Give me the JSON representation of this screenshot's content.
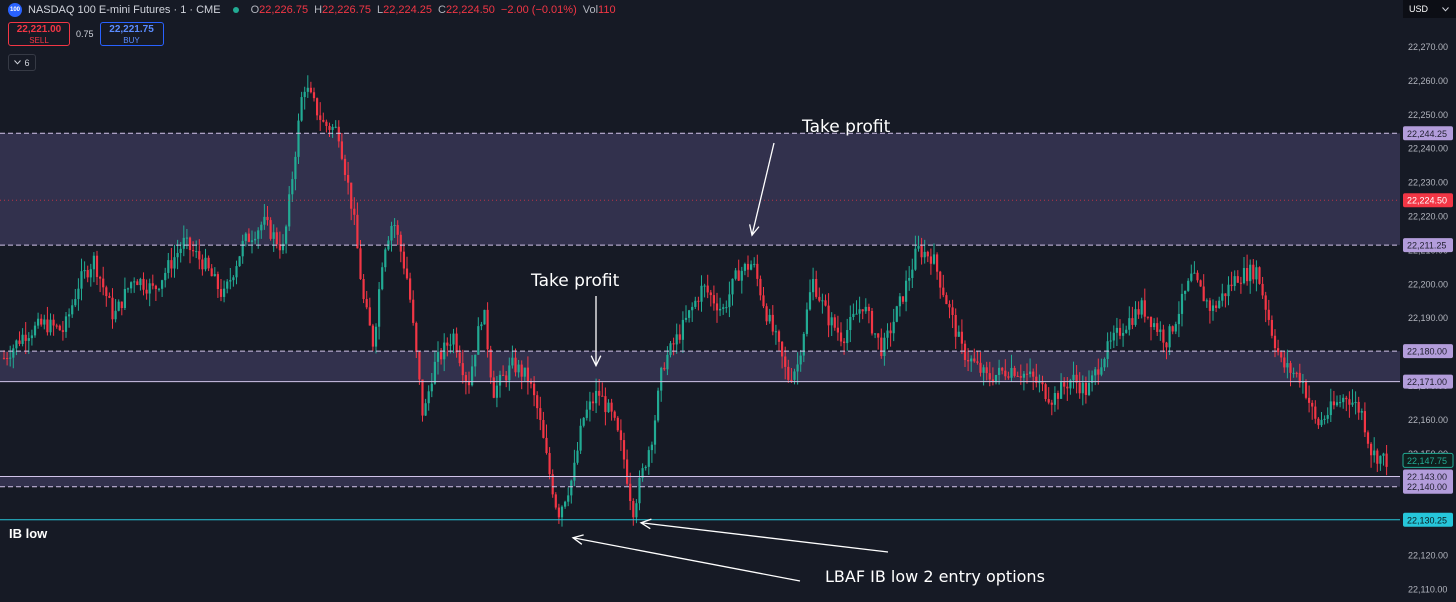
{
  "header": {
    "symbol_icon": "100",
    "symbol": "NASDAQ 100 E-mini Futures · 1 · CME",
    "ohlc": [
      {
        "k": "O",
        "v": "22,226.75"
      },
      {
        "k": "H",
        "v": "22,226.75"
      },
      {
        "k": "L",
        "v": "22,224.25"
      },
      {
        "k": "C",
        "v": "22,224.50"
      },
      {
        "k": "",
        "v": "−2.00 (−0.01%)"
      },
      {
        "k": "Vol",
        "v": "110"
      }
    ]
  },
  "trade": {
    "sell_price": "22,221.00",
    "sell_label": "SELL",
    "spread": "0.75",
    "buy_price": "22,221.75",
    "buy_label": "BUY"
  },
  "indicators_toggle": "6",
  "currency": "USD",
  "currency_chevron": "chevron-down-icon",
  "colors": {
    "background": "#161a25",
    "up": "#22ab94",
    "down": "#f23645",
    "zone": "#4b4670",
    "level_line": "#d1c4e9",
    "ib_line": "#26c6da"
  },
  "chart_data": {
    "type": "candlestick",
    "y_axis": {
      "ticks": [
        22270,
        22260,
        22250,
        22240,
        22230,
        22220,
        22210,
        22200,
        22190,
        22180,
        22170,
        22160,
        22150,
        22140,
        22130,
        22120,
        22110
      ],
      "tick_labels": [
        "22,270.00",
        "22,260.00",
        "22,250.00",
        "22,240.00",
        "22,230.00",
        "22,220.00",
        "22,210.00",
        "22,200.00",
        "22,190.00",
        "22,180.00",
        "22,170.00",
        "22,160.00",
        "22,150.00",
        "22,140.00",
        "22,130.00",
        "22,120.00",
        "22,110.00"
      ],
      "range": [
        22108.5,
        22277.5
      ]
    },
    "zones": [
      {
        "top": 22244.25,
        "bottom": 22211.25
      },
      {
        "top": 22180.0,
        "bottom": 22171.0
      },
      {
        "top": 22143.0,
        "bottom": 22140.0
      }
    ],
    "levels": [
      {
        "price": 22244.25,
        "label": "22,244.25",
        "style": "dashed"
      },
      {
        "price": 22211.25,
        "label": "22,211.25",
        "style": "dashed"
      },
      {
        "price": 22180.0,
        "label": "22,180.00",
        "style": "dashed"
      },
      {
        "price": 22171.0,
        "label": "22,171.00",
        "style": "solid"
      },
      {
        "price": 22143.0,
        "label": "22,143.00",
        "style": "solid"
      },
      {
        "price": 22140.0,
        "label": "22,140.00",
        "style": "dashed"
      }
    ],
    "ib_low": {
      "price": 22130.25,
      "label": "22,130.25",
      "text": "IB low"
    },
    "last_price": {
      "price": 22224.5,
      "label": "22,224.50"
    },
    "current_price": {
      "price": 22147.75,
      "label": "22,147.75"
    },
    "annotations": [
      {
        "text": "Take profit",
        "target_price": 22211.25
      },
      {
        "text": "Take profit",
        "target_price": 22171.0
      },
      {
        "text": "LBAF IB low 2 entry options",
        "target_price": 22130.25
      }
    ],
    "price_path": [
      [
        0,
        22178
      ],
      [
        0.02,
        22185
      ],
      [
        0.04,
        22188
      ],
      [
        0.06,
        22186
      ],
      [
        0.075,
        22200
      ],
      [
        0.09,
        22207
      ],
      [
        0.11,
        22190
      ],
      [
        0.13,
        22202
      ],
      [
        0.15,
        22198
      ],
      [
        0.18,
        22212
      ],
      [
        0.2,
        22206
      ],
      [
        0.22,
        22196
      ],
      [
        0.24,
        22212
      ],
      [
        0.26,
        22218
      ],
      [
        0.28,
        22210
      ],
      [
        0.3,
        22259
      ],
      [
        0.32,
        22247
      ],
      [
        0.335,
        22245
      ],
      [
        0.35,
        22220
      ],
      [
        0.36,
        22195
      ],
      [
        0.37,
        22182
      ],
      [
        0.38,
        22210
      ],
      [
        0.39,
        22219
      ],
      [
        0.405,
        22200
      ],
      [
        0.42,
        22160
      ],
      [
        0.43,
        22175
      ],
      [
        0.45,
        22185
      ],
      [
        0.465,
        22170
      ],
      [
        0.48,
        22193
      ],
      [
        0.49,
        22168
      ],
      [
        0.51,
        22176
      ],
      [
        0.525,
        22172
      ],
      [
        0.535,
        22162
      ],
      [
        0.545,
        22146
      ],
      [
        0.555,
        22132
      ],
      [
        0.57,
        22143
      ],
      [
        0.58,
        22160
      ],
      [
        0.595,
        22168
      ],
      [
        0.61,
        22160
      ],
      [
        0.62,
        22150
      ],
      [
        0.63,
        22133
      ],
      [
        0.65,
        22156
      ],
      [
        0.66,
        22176
      ],
      [
        0.68,
        22187
      ],
      [
        0.7,
        22199
      ],
      [
        0.72,
        22192
      ],
      [
        0.735,
        22203
      ],
      [
        0.75,
        22206
      ],
      [
        0.765,
        22190
      ],
      [
        0.775,
        22182
      ],
      [
        0.785,
        22172
      ],
      [
        0.795,
        22176
      ],
      [
        0.81,
        22201
      ],
      [
        0.825,
        22190
      ],
      [
        0.84,
        22184
      ],
      [
        0.86,
        22194
      ],
      [
        0.88,
        22180
      ],
      [
        0.9,
        22196
      ],
      [
        0.915,
        22210
      ],
      [
        0.93,
        22208
      ],
      [
        0.945,
        22194
      ],
      [
        0.96,
        22180
      ],
      [
        0.985,
        22172
      ],
      [
        1.01,
        22175
      ],
      [
        1.03,
        22172
      ],
      [
        1.05,
        22166
      ],
      [
        1.07,
        22172
      ],
      [
        1.085,
        22168
      ],
      [
        1.1,
        22178
      ],
      [
        1.12,
        22187
      ],
      [
        1.14,
        22193
      ],
      [
        1.165,
        22183
      ],
      [
        1.19,
        22202
      ],
      [
        1.21,
        22192
      ],
      [
        1.235,
        22202
      ],
      [
        1.255,
        22204
      ],
      [
        1.27,
        22186
      ],
      [
        1.28,
        22176
      ],
      [
        1.3,
        22172
      ],
      [
        1.315,
        22158
      ],
      [
        1.33,
        22163
      ],
      [
        1.345,
        22167
      ],
      [
        1.36,
        22162
      ],
      [
        1.37,
        22150
      ],
      [
        1.385,
        22147.75
      ]
    ]
  }
}
